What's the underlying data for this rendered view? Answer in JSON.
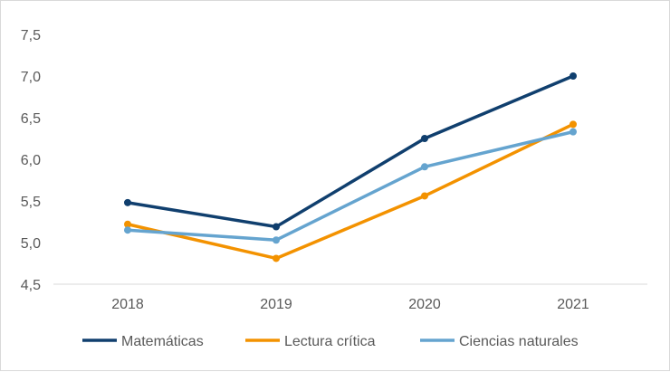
{
  "chart_data": {
    "type": "line",
    "categories": [
      "2018",
      "2019",
      "2020",
      "2021"
    ],
    "ylim": [
      4.5,
      7.5
    ],
    "yticks": [
      "4,5",
      "5,0",
      "5,5",
      "6,0",
      "6,5",
      "7,0",
      "7,5"
    ],
    "ytick_values": [
      4.5,
      5.0,
      5.5,
      6.0,
      6.5,
      7.0,
      7.5
    ],
    "grid": false,
    "legend_position": "bottom",
    "series": [
      {
        "name": "Matemáticas",
        "color": "#103f6e",
        "values": [
          5.48,
          5.19,
          6.25,
          7.0
        ]
      },
      {
        "name": "Lectura crítica",
        "color": "#f39200",
        "values": [
          5.22,
          4.81,
          5.56,
          6.42
        ]
      },
      {
        "name": "Ciencias naturales",
        "color": "#65a4cf",
        "values": [
          5.15,
          5.03,
          5.91,
          6.33
        ]
      }
    ]
  }
}
